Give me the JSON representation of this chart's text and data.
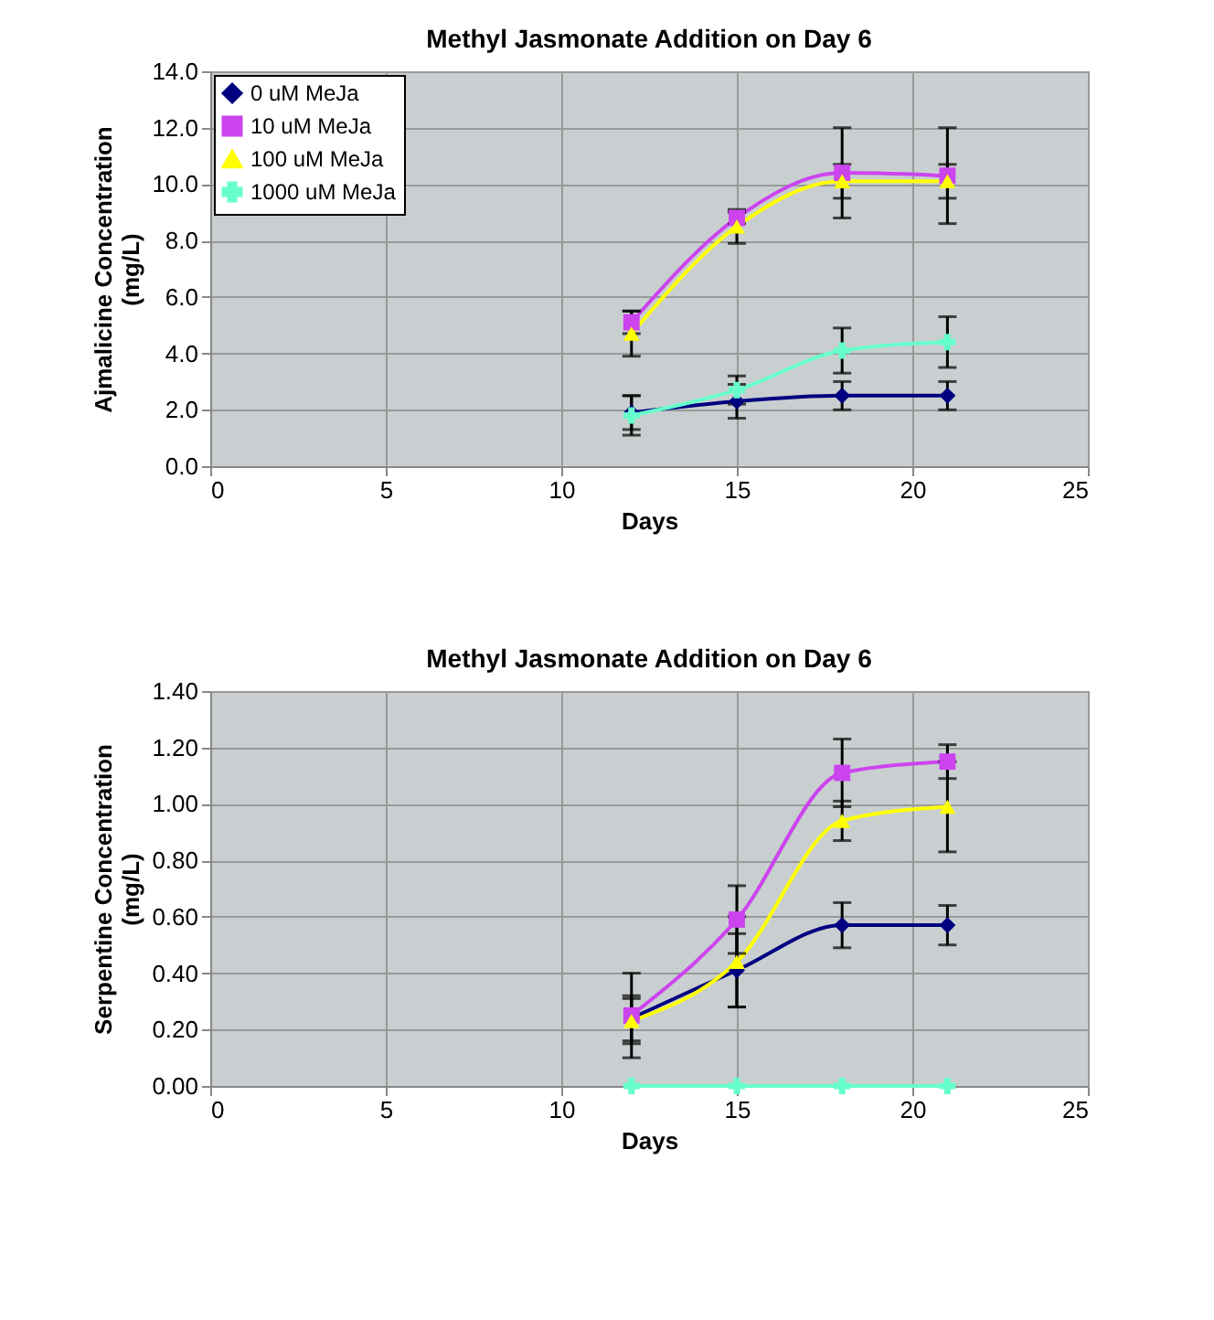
{
  "chart_data": [
    {
      "type": "line",
      "title": "Methyl Jasmonate Addition on Day 6",
      "xlabel": "Days",
      "ylabel": "Ajmalicine Concentration (mg/L)",
      "x": [
        12,
        15,
        18,
        21
      ],
      "xlim": [
        0,
        25
      ],
      "xticks": [
        0,
        5,
        10,
        15,
        20,
        25
      ],
      "ylim": [
        0,
        14
      ],
      "yticks": [
        {
          "value": 0,
          "label": "0.0"
        },
        {
          "value": 2,
          "label": "2.0"
        },
        {
          "value": 4,
          "label": "4.0"
        },
        {
          "value": 6,
          "label": "6.0"
        },
        {
          "value": 8,
          "label": "8.0"
        },
        {
          "value": 10,
          "label": "10.0"
        },
        {
          "value": 12,
          "label": "12.0"
        },
        {
          "value": 14,
          "label": "14.0"
        }
      ],
      "grid": true,
      "legend": "top left",
      "series": [
        {
          "name": "0 uM MeJa",
          "color": "#000080",
          "marker": "diamond",
          "values": [
            1.9,
            2.3,
            2.5,
            2.5
          ],
          "errors": [
            0.6,
            0.6,
            0.5,
            0.5
          ]
        },
        {
          "name": "10 uM MeJa",
          "color": "#cc44ee",
          "marker": "square",
          "values": [
            5.1,
            8.8,
            10.4,
            10.3
          ],
          "errors": [
            0.4,
            0.2,
            1.6,
            1.7
          ]
        },
        {
          "name": "100 uM MeJa",
          "color": "#ffff00",
          "marker": "triangle",
          "values": [
            4.7,
            8.5,
            10.1,
            10.1
          ],
          "errors": [
            0.8,
            0.6,
            0.6,
            0.6
          ]
        },
        {
          "name": "1000 uM MeJa",
          "color": "#66ffcc",
          "marker": "cross",
          "values": [
            1.8,
            2.7,
            4.1,
            4.4
          ],
          "errors": [
            0.7,
            0.5,
            0.8,
            0.9
          ]
        }
      ]
    },
    {
      "type": "line",
      "title": "Methyl Jasmonate Addition on Day 6",
      "xlabel": "Days",
      "ylabel": "Serpentine Concentration (mg/L)",
      "x": [
        12,
        15,
        18,
        21
      ],
      "xlim": [
        0,
        25
      ],
      "xticks": [
        0,
        5,
        10,
        15,
        20,
        25
      ],
      "ylim": [
        0,
        1.4
      ],
      "yticks": [
        {
          "value": 0,
          "label": "0.00"
        },
        {
          "value": 0.2,
          "label": "0.20"
        },
        {
          "value": 0.4,
          "label": "0.40"
        },
        {
          "value": 0.6,
          "label": "0.60"
        },
        {
          "value": 0.8,
          "label": "0.80"
        },
        {
          "value": 1,
          "label": "1.00"
        },
        {
          "value": 1.2,
          "label": "1.20"
        },
        {
          "value": 1.4,
          "label": "1.40"
        }
      ],
      "grid": true,
      "legend": "top left",
      "series": [
        {
          "name": "0 uM MeJa",
          "color": "#000080",
          "marker": "diamond",
          "values": [
            0.24,
            0.41,
            0.57,
            0.57
          ],
          "errors": [
            0.08,
            0.13,
            0.08,
            0.07
          ]
        },
        {
          "name": "10 uM MeJa",
          "color": "#cc44ee",
          "marker": "square",
          "values": [
            0.25,
            0.59,
            1.11,
            1.15
          ],
          "errors": [
            0.15,
            0.12,
            0.12,
            0.06
          ]
        },
        {
          "name": "100 uM MeJa",
          "color": "#ffff00",
          "marker": "triangle",
          "values": [
            0.23,
            0.44,
            0.94,
            0.99
          ],
          "errors": [
            0.08,
            0.16,
            0.07,
            0.16
          ]
        },
        {
          "name": "1000 uM MeJa",
          "color": "#66ffcc",
          "marker": "cross",
          "values": [
            0,
            0,
            0,
            0
          ]
        }
      ]
    }
  ]
}
